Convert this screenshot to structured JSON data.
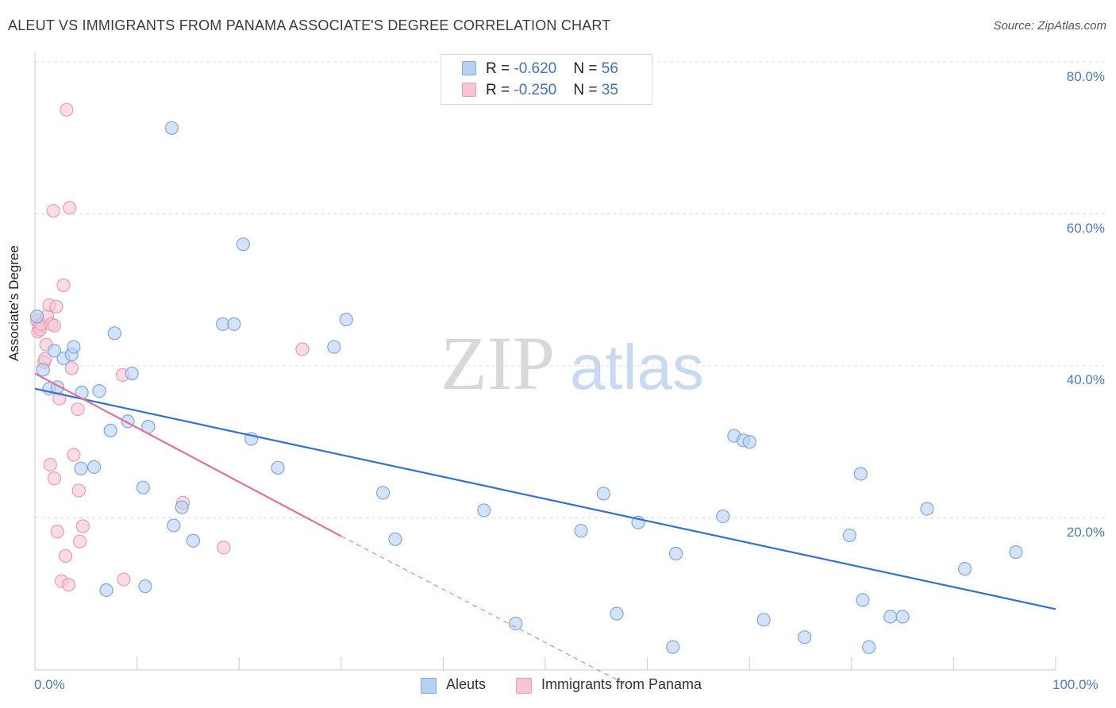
{
  "title": "ALEUT VS IMMIGRANTS FROM PANAMA ASSOCIATE'S DEGREE CORRELATION CHART",
  "source": "Source: ZipAtlas.com",
  "watermark": {
    "zip": "ZIP",
    "atlas": "atlas"
  },
  "legend": {
    "rows": [
      {
        "r_label": "R = ",
        "r_value": "-0.620",
        "n_label": "N = ",
        "n_value": "56"
      },
      {
        "r_label": "R = ",
        "r_value": "-0.250",
        "n_label": "N = ",
        "n_value": "35"
      }
    ]
  },
  "bottom_legend": [
    "Aleuts",
    "Immigrants from Panama"
  ],
  "colors": {
    "blue_fill": "#b8d1f3",
    "blue_stroke": "#7da8e3",
    "blue_line": "#2f72d6",
    "pink_fill": "#f8c5d4",
    "pink_stroke": "#ee9ab3",
    "pink_line": "#e56f9a",
    "axis_text": "#4a7cc9",
    "grid": "#dddddd"
  },
  "chart_data": {
    "type": "scatter",
    "title": "ALEUT VS IMMIGRANTS FROM PANAMA ASSOCIATE'S DEGREE CORRELATION CHART",
    "xlabel": "",
    "ylabel": "Associate's Degree",
    "xlim": [
      0,
      100
    ],
    "ylim": [
      0,
      80
    ],
    "x_tick_labels": [
      "0.0%",
      "100.0%"
    ],
    "y_ticks": [
      20,
      40,
      60,
      80
    ],
    "y_tick_labels": [
      "20.0%",
      "40.0%",
      "60.0%",
      "80.0%"
    ],
    "grid": true,
    "legend_position": "top-center",
    "series": [
      {
        "name": "Aleuts",
        "r": -0.62,
        "n": 56,
        "trend": {
          "x0": 0,
          "y0": 37.0,
          "x1": 100,
          "y1": 8.0
        },
        "points": [
          [
            0.2,
            46.5
          ],
          [
            0.8,
            39.5
          ],
          [
            1.4,
            37.0
          ],
          [
            1.9,
            42.0
          ],
          [
            2.2,
            37.2
          ],
          [
            2.8,
            41.0
          ],
          [
            3.6,
            41.5
          ],
          [
            3.8,
            42.5
          ],
          [
            4.5,
            26.5
          ],
          [
            4.6,
            36.5
          ],
          [
            5.8,
            26.7
          ],
          [
            6.3,
            36.7
          ],
          [
            7.0,
            10.5
          ],
          [
            7.4,
            31.5
          ],
          [
            7.8,
            44.3
          ],
          [
            9.1,
            32.7
          ],
          [
            9.5,
            39.0
          ],
          [
            10.6,
            24.0
          ],
          [
            10.8,
            11.0
          ],
          [
            11.1,
            32.0
          ],
          [
            13.4,
            71.3
          ],
          [
            13.6,
            19.0
          ],
          [
            14.4,
            21.4
          ],
          [
            15.5,
            17.0
          ],
          [
            18.4,
            45.5
          ],
          [
            19.5,
            45.5
          ],
          [
            20.4,
            56.0
          ],
          [
            21.2,
            30.4
          ],
          [
            23.8,
            26.6
          ],
          [
            29.3,
            42.5
          ],
          [
            30.5,
            46.1
          ],
          [
            34.1,
            23.3
          ],
          [
            35.3,
            17.2
          ],
          [
            44.0,
            21.0
          ],
          [
            47.1,
            6.1
          ],
          [
            53.5,
            18.3
          ],
          [
            55.7,
            23.2
          ],
          [
            57.0,
            7.4
          ],
          [
            59.1,
            19.4
          ],
          [
            62.5,
            3.0
          ],
          [
            62.8,
            15.3
          ],
          [
            67.4,
            20.2
          ],
          [
            68.5,
            30.8
          ],
          [
            69.4,
            30.2
          ],
          [
            70.0,
            30.0
          ],
          [
            71.4,
            6.6
          ],
          [
            75.4,
            4.3
          ],
          [
            79.8,
            17.7
          ],
          [
            80.9,
            25.8
          ],
          [
            81.1,
            9.2
          ],
          [
            81.7,
            3.0
          ],
          [
            83.8,
            7.0
          ],
          [
            85.0,
            7.0
          ],
          [
            87.4,
            21.2
          ],
          [
            91.1,
            13.3
          ],
          [
            96.1,
            15.5
          ]
        ]
      },
      {
        "name": "Immigrants from Panama",
        "r": -0.25,
        "n": 35,
        "trend": {
          "x0": 0,
          "y0": 39.0,
          "x1": 30,
          "y1": 17.6
        },
        "trend_dashed": {
          "x0": 30,
          "y0": 17.6,
          "x1": 58,
          "y1": -2.0
        },
        "points": [
          [
            0.2,
            46.0
          ],
          [
            0.3,
            44.5
          ],
          [
            0.4,
            45.2
          ],
          [
            0.5,
            44.8
          ],
          [
            0.6,
            45.5
          ],
          [
            0.9,
            40.5
          ],
          [
            1.0,
            40.9
          ],
          [
            1.1,
            42.8
          ],
          [
            1.2,
            46.6
          ],
          [
            1.4,
            48.0
          ],
          [
            1.5,
            27.0
          ],
          [
            1.6,
            45.5
          ],
          [
            1.8,
            60.4
          ],
          [
            1.9,
            45.3
          ],
          [
            1.9,
            25.2
          ],
          [
            2.1,
            47.8
          ],
          [
            2.2,
            18.2
          ],
          [
            2.4,
            35.7
          ],
          [
            2.6,
            11.7
          ],
          [
            2.8,
            50.6
          ],
          [
            3.0,
            15.0
          ],
          [
            3.1,
            73.7
          ],
          [
            3.3,
            11.2
          ],
          [
            3.4,
            60.8
          ],
          [
            3.6,
            39.7
          ],
          [
            3.8,
            28.3
          ],
          [
            4.2,
            34.3
          ],
          [
            4.3,
            23.6
          ],
          [
            4.4,
            16.9
          ],
          [
            4.7,
            18.9
          ],
          [
            8.6,
            38.8
          ],
          [
            8.7,
            11.9
          ],
          [
            14.5,
            22.0
          ],
          [
            18.5,
            16.1
          ],
          [
            26.2,
            42.2
          ]
        ]
      }
    ]
  }
}
